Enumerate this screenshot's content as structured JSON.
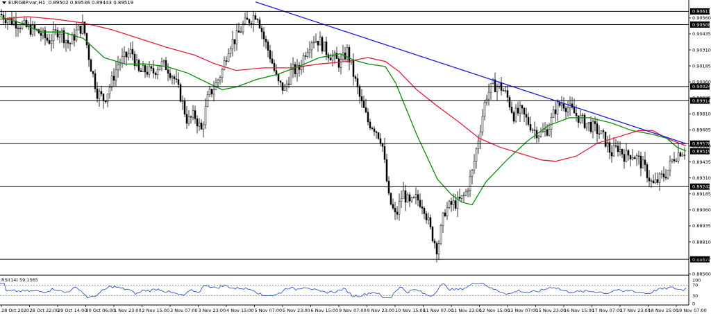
{
  "header": {
    "symbol": "EURGBP.var,H1",
    "ohlc": "0.89502 0.89536 0.89443 0.89519"
  },
  "rsi": {
    "label": "RSI(14) 59.1565",
    "period": 14,
    "value": 59.1565,
    "levels": [
      "100",
      "70",
      "30",
      "0"
    ],
    "level_values": [
      100,
      70,
      30,
      0
    ]
  },
  "colors": {
    "candle": "#000000",
    "ma_fast": "#0a8a0a",
    "ma_slow": "#e0203c",
    "trendline": "#1a1adb",
    "level_line": "#000000",
    "rsi_line": "#1e3fc8",
    "label_bg": "#000000",
    "label_text": "#ffffff"
  },
  "chart_data": {
    "type": "candlestick",
    "ylim": [
      0.8855,
      0.907
    ],
    "price_ticks": [
      "0.90810",
      "0.90685",
      "0.90560",
      "0.90435",
      "0.90310",
      "0.90185",
      "0.90060",
      "0.89935",
      "0.89810",
      "0.89685",
      "0.89560",
      "0.89435",
      "0.89310",
      "0.89185",
      "0.89060",
      "0.88935",
      "0.88810",
      "0.88685",
      "0.88560"
    ],
    "horizontal_levels": [
      "0.90611",
      "0.90508",
      "0.90024",
      "0.89914",
      "0.89578",
      "0.89242",
      "0.88674"
    ],
    "current_price": "0.89519",
    "x_labels": [
      "28 Oct 2020",
      "28 Oct 22:00",
      "29 Oct 14:00",
      "30 Oct 06:00",
      "1 Nov 23:00",
      "2 Nov 15:00",
      "3 Nov 07:00",
      "3 Nov 23:00",
      "4 Nov 15:00",
      "5 Nov 07:00",
      "5 Nov 23:00",
      "6 Nov 15:00",
      "9 Nov 07:00",
      "9 Nov 23:00",
      "10 Nov 15:00",
      "11 Nov 07:00",
      "11 Nov 23:00",
      "12 Nov 15:00",
      "13 Nov 07:00",
      "15 Nov 23:00",
      "16 Nov 15:00",
      "17 Nov 07:00",
      "17 Nov 23:00",
      "18 Nov 15:00",
      "19 Nov 07:00"
    ],
    "close_path": [
      [
        0,
        0.9059
      ],
      [
        12,
        0.9055
      ],
      [
        25,
        0.9052
      ],
      [
        40,
        0.9048
      ],
      [
        55,
        0.9045
      ],
      [
        70,
        0.9038
      ],
      [
        85,
        0.9047
      ],
      [
        100,
        0.9035
      ],
      [
        110,
        0.9045
      ],
      [
        120,
        0.905
      ],
      [
        130,
        0.902
      ],
      [
        140,
        0.8998
      ],
      [
        150,
        0.8992
      ],
      [
        160,
        0.9005
      ],
      [
        170,
        0.902
      ],
      [
        180,
        0.9025
      ],
      [
        190,
        0.903
      ],
      [
        200,
        0.9013
      ],
      [
        210,
        0.9015
      ],
      [
        220,
        0.9013
      ],
      [
        230,
        0.902
      ],
      [
        240,
        0.9018
      ],
      [
        250,
        0.901
      ],
      [
        260,
        0.8995
      ],
      [
        270,
        0.8975
      ],
      [
        280,
        0.898
      ],
      [
        290,
        0.8968
      ],
      [
        300,
        0.8995
      ],
      [
        310,
        0.9003
      ],
      [
        320,
        0.9015
      ],
      [
        330,
        0.9035
      ],
      [
        340,
        0.904
      ],
      [
        350,
        0.905
      ],
      [
        360,
        0.9055
      ],
      [
        370,
        0.906
      ],
      [
        380,
        0.904
      ],
      [
        390,
        0.9025
      ],
      [
        400,
        0.9005
      ],
      [
        410,
        0.9
      ],
      [
        420,
        0.9015
      ],
      [
        430,
        0.9015
      ],
      [
        440,
        0.903
      ],
      [
        450,
        0.904
      ],
      [
        460,
        0.9038
      ],
      [
        470,
        0.903
      ],
      [
        480,
        0.9025
      ],
      [
        490,
        0.902
      ],
      [
        500,
        0.903
      ],
      [
        510,
        0.901
      ],
      [
        520,
        0.899
      ],
      [
        530,
        0.8975
      ],
      [
        540,
        0.897
      ],
      [
        550,
        0.896
      ],
      [
        560,
        0.8915
      ],
      [
        570,
        0.89
      ],
      [
        580,
        0.892
      ],
      [
        590,
        0.891
      ],
      [
        600,
        0.8915
      ],
      [
        610,
        0.891
      ],
      [
        620,
        0.889
      ],
      [
        630,
        0.8875
      ],
      [
        640,
        0.8905
      ],
      [
        650,
        0.891
      ],
      [
        660,
        0.8912
      ],
      [
        670,
        0.8918
      ],
      [
        680,
        0.8935
      ],
      [
        690,
        0.8965
      ],
      [
        700,
        0.8995
      ],
      [
        710,
        0.9003
      ],
      [
        720,
        0.9003
      ],
      [
        730,
        0.8995
      ],
      [
        740,
        0.898
      ],
      [
        750,
        0.8983
      ],
      [
        760,
        0.8975
      ],
      [
        770,
        0.8968
      ],
      [
        780,
        0.8965
      ],
      [
        790,
        0.897
      ],
      [
        800,
        0.8985
      ],
      [
        810,
        0.899
      ],
      [
        820,
        0.8985
      ],
      [
        830,
        0.898
      ],
      [
        840,
        0.8975
      ],
      [
        850,
        0.8972
      ],
      [
        860,
        0.8968
      ],
      [
        870,
        0.8962
      ],
      [
        880,
        0.895
      ],
      [
        890,
        0.8955
      ],
      [
        900,
        0.8948
      ],
      [
        910,
        0.895
      ],
      [
        920,
        0.8945
      ],
      [
        930,
        0.8937
      ],
      [
        940,
        0.8925
      ],
      [
        950,
        0.893
      ],
      [
        960,
        0.8935
      ],
      [
        970,
        0.8947
      ],
      [
        980,
        0.8952
      ],
      [
        988,
        0.8952
      ]
    ],
    "ma_fast": [
      [
        0,
        0.9057
      ],
      [
        30,
        0.9052
      ],
      [
        60,
        0.9045
      ],
      [
        90,
        0.9045
      ],
      [
        120,
        0.904
      ],
      [
        150,
        0.9025
      ],
      [
        180,
        0.902
      ],
      [
        210,
        0.902
      ],
      [
        240,
        0.9018
      ],
      [
        270,
        0.9013
      ],
      [
        300,
        0.9005
      ],
      [
        320,
        0.9
      ],
      [
        340,
        0.9002
      ],
      [
        370,
        0.9008
      ],
      [
        400,
        0.9012
      ],
      [
        430,
        0.9018
      ],
      [
        460,
        0.9025
      ],
      [
        490,
        0.9028
      ],
      [
        510,
        0.9023
      ],
      [
        530,
        0.902
      ],
      [
        555,
        0.9018
      ],
      [
        570,
        0.9005
      ],
      [
        600,
        0.8965
      ],
      [
        630,
        0.893
      ],
      [
        650,
        0.8918
      ],
      [
        665,
        0.8912
      ],
      [
        680,
        0.891
      ],
      [
        700,
        0.8928
      ],
      [
        730,
        0.8945
      ],
      [
        760,
        0.896
      ],
      [
        790,
        0.8972
      ],
      [
        820,
        0.8978
      ],
      [
        850,
        0.8978
      ],
      [
        880,
        0.8974
      ],
      [
        910,
        0.8968
      ],
      [
        940,
        0.8965
      ],
      [
        960,
        0.8962
      ],
      [
        975,
        0.8955
      ],
      [
        988,
        0.8952
      ]
    ],
    "ma_slow": [
      [
        0,
        0.9055
      ],
      [
        40,
        0.9057
      ],
      [
        80,
        0.9055
      ],
      [
        120,
        0.9052
      ],
      [
        160,
        0.9047
      ],
      [
        200,
        0.904
      ],
      [
        240,
        0.9033
      ],
      [
        280,
        0.9027
      ],
      [
        310,
        0.902
      ],
      [
        340,
        0.9015
      ],
      [
        380,
        0.9017
      ],
      [
        420,
        0.9017
      ],
      [
        460,
        0.902
      ],
      [
        500,
        0.9022
      ],
      [
        530,
        0.9025
      ],
      [
        555,
        0.9022
      ],
      [
        575,
        0.9014
      ],
      [
        600,
        0.9
      ],
      [
        630,
        0.8987
      ],
      [
        660,
        0.8975
      ],
      [
        690,
        0.8962
      ],
      [
        720,
        0.8955
      ],
      [
        750,
        0.895
      ],
      [
        780,
        0.8945
      ],
      [
        800,
        0.8944
      ],
      [
        830,
        0.8948
      ],
      [
        860,
        0.8958
      ],
      [
        890,
        0.8963
      ],
      [
        920,
        0.8968
      ],
      [
        940,
        0.8968
      ],
      [
        960,
        0.8962
      ],
      [
        988,
        0.8956
      ]
    ],
    "trendline": [
      [
        368,
        0.90685
      ],
      [
        988,
        0.89578
      ]
    ]
  }
}
